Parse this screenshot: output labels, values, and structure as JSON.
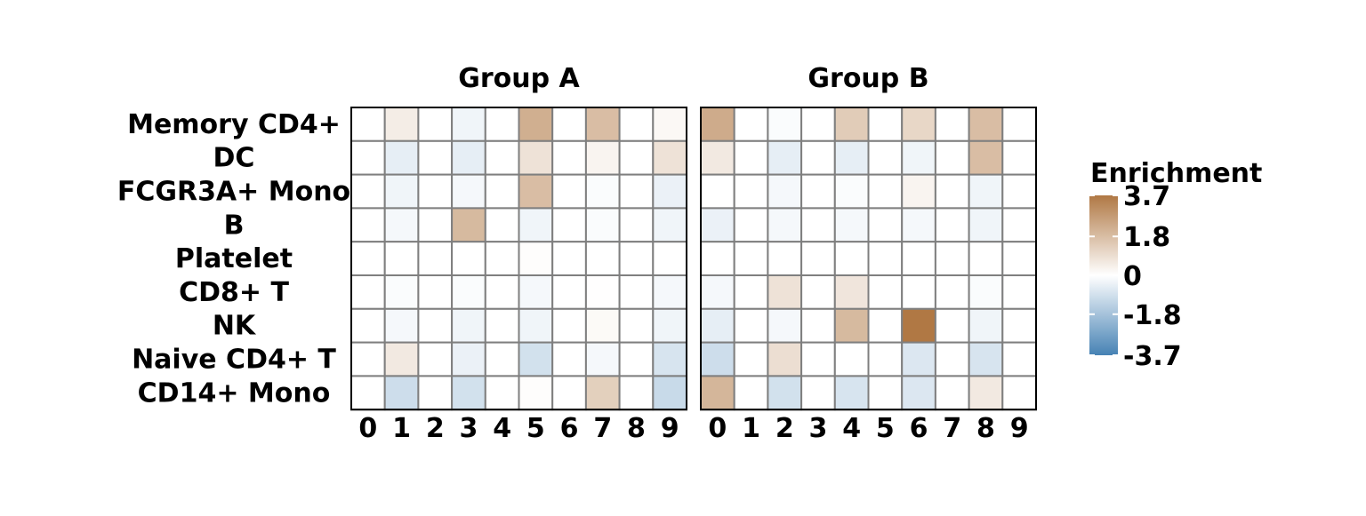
{
  "chart_data": {
    "type": "heatmap",
    "title": "",
    "row_labels": [
      "Memory CD4+",
      "DC",
      "FCGR3A+ Mono",
      "B",
      "Platelet",
      "CD8+ T",
      "NK",
      "Naive CD4+ T",
      "CD14+ Mono"
    ],
    "column_labels": [
      "0",
      "1",
      "2",
      "3",
      "4",
      "5",
      "6",
      "7",
      "8",
      "9"
    ],
    "panels": [
      {
        "name": "Group A",
        "values": [
          [
            0,
            0.5,
            0,
            -0.3,
            0,
            2.2,
            0,
            1.8,
            0,
            0.2
          ],
          [
            0,
            -0.5,
            0,
            -0.5,
            0,
            0.8,
            0,
            0.3,
            0,
            0.8
          ],
          [
            0,
            -0.3,
            0,
            -0.2,
            0,
            1.8,
            0,
            -0.1,
            0,
            -0.4
          ],
          [
            0,
            -0.2,
            0,
            1.9,
            0,
            -0.3,
            0,
            -0.1,
            0,
            -0.3
          ],
          [
            0,
            0,
            0,
            0,
            0,
            0.05,
            0,
            0,
            0,
            0
          ],
          [
            0,
            -0.1,
            0,
            -0.1,
            0,
            -0.2,
            0,
            0.02,
            0,
            -0.2
          ],
          [
            0,
            -0.2,
            0,
            -0.3,
            0,
            -0.3,
            0,
            0.15,
            0,
            -0.3
          ],
          [
            0,
            0.6,
            0,
            -0.4,
            0,
            -0.9,
            0,
            -0.2,
            0,
            -0.8
          ],
          [
            0,
            -1.0,
            0,
            -0.9,
            0,
            0.05,
            0,
            1.3,
            0,
            -1.1
          ]
        ]
      },
      {
        "name": "Group B",
        "values": [
          [
            2.3,
            0,
            -0.1,
            0,
            1.4,
            0,
            1.1,
            0,
            1.8,
            0
          ],
          [
            0.6,
            0,
            -0.5,
            0,
            -0.5,
            0,
            -0.3,
            0,
            1.8,
            0
          ],
          [
            0,
            0,
            -0.2,
            0,
            -0.1,
            0,
            0.3,
            0,
            -0.3,
            0
          ],
          [
            -0.4,
            0,
            -0.2,
            0,
            -0.2,
            0,
            -0.2,
            0,
            -0.3,
            0
          ],
          [
            0,
            0,
            0,
            0,
            0,
            0,
            0,
            0,
            0,
            0
          ],
          [
            -0.2,
            0,
            0.8,
            0,
            0.7,
            0,
            0,
            0,
            -0.1,
            0
          ],
          [
            -0.5,
            0,
            -0.2,
            0,
            1.9,
            0,
            3.7,
            0,
            -0.3,
            0
          ],
          [
            -1.0,
            0,
            0.9,
            0,
            0,
            0,
            -0.7,
            0,
            -0.8,
            0
          ],
          [
            2.0,
            0,
            -0.9,
            0,
            -0.8,
            0,
            -0.7,
            0,
            0.6,
            0
          ]
        ]
      }
    ],
    "color_scale": {
      "title": "Enrichment",
      "min": -3.7,
      "max": 3.7,
      "ticks": [
        3.7,
        1.8,
        0,
        -1.8,
        -3.7
      ],
      "tick_labels": [
        "3.7",
        "1.8",
        "0",
        "-1.8",
        "-3.7"
      ],
      "low_color": "#4682b4",
      "mid_color": "#ffffff",
      "high_color": "#b07844"
    },
    "grid": true,
    "legend_position": "right"
  }
}
